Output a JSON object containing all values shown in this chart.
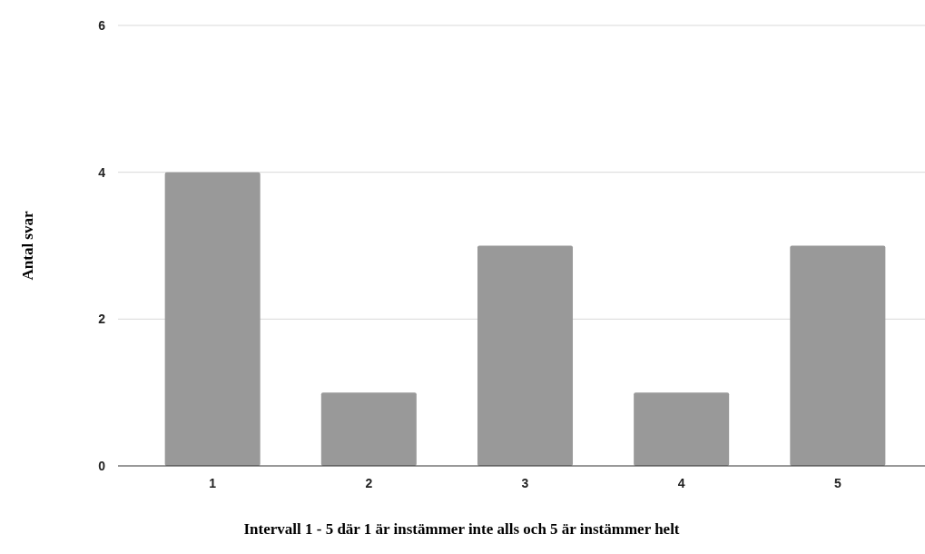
{
  "chart_data": {
    "type": "bar",
    "xlabel": "Intervall 1 - 5 där 1 är instämmer inte alls och 5 är instämmer helt",
    "ylabel": "Antal svar",
    "categories": [
      "1",
      "2",
      "3",
      "4",
      "5"
    ],
    "values": [
      4,
      1,
      3,
      1,
      3
    ],
    "color": "#999999",
    "ylim": [
      0,
      6
    ],
    "yticks": [
      0,
      2,
      4,
      6
    ],
    "grid": "y"
  }
}
